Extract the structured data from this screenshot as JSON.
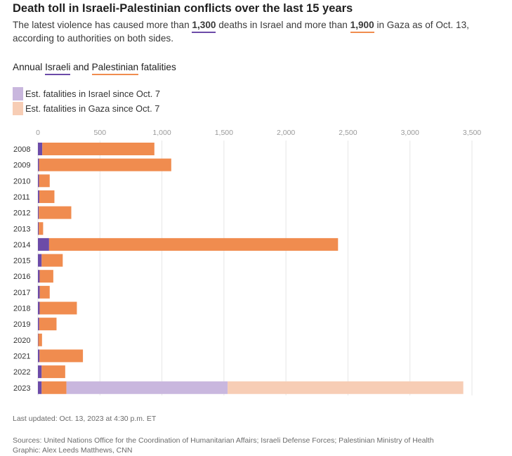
{
  "header": {
    "title": "Death toll in Israeli-Palestinian conflicts over the last 15 years",
    "subtitle_part1": "The latest violence has caused more than ",
    "subtitle_isr_value": "1,300",
    "subtitle_part2": " deaths in Israel and more than ",
    "subtitle_pal_value": "1,900",
    "subtitle_part3": " in Gaza as of Oct. 13, according to authorities on both sides."
  },
  "chart_heading": {
    "prefix": "Annual ",
    "israeli": "Israeli",
    "and": " and ",
    "palestinian": "Palestinian",
    "suffix": " fatalities"
  },
  "legend": [
    {
      "label": "Est. fatalities in Israel since Oct. 7",
      "color": "#c9b7de"
    },
    {
      "label": "Est. fatalities in Gaza since Oct. 7",
      "color": "#f7cdb5"
    }
  ],
  "colors": {
    "israeli": "#6c4ba8",
    "palestinian": "#f08c4f",
    "israeli_est": "#c9b7de",
    "palestinian_est": "#f7cdb5",
    "grid": "#e6e6e6"
  },
  "chart_data": {
    "type": "bar",
    "orientation": "horizontal",
    "stacked": true,
    "title": "Annual Israeli and Palestinian fatalities",
    "xlim": [
      0,
      3500
    ],
    "ticks": [
      0,
      500,
      1000,
      1500,
      2000,
      2500,
      3000,
      3500
    ],
    "tick_labels": [
      "0",
      "500",
      "1,000",
      "1,500",
      "2,000",
      "2,500",
      "3,000",
      "3,500"
    ],
    "categories": [
      "2008",
      "2009",
      "2010",
      "2011",
      "2012",
      "2013",
      "2014",
      "2015",
      "2016",
      "2017",
      "2018",
      "2019",
      "2020",
      "2021",
      "2022",
      "2023"
    ],
    "series": [
      {
        "name": "Israeli fatalities",
        "values": [
          35,
          9,
          9,
          11,
          7,
          6,
          90,
          30,
          14,
          15,
          14,
          10,
          3,
          13,
          30,
          30
        ]
      },
      {
        "name": "Palestinian fatalities",
        "values": [
          904,
          1066,
          86,
          122,
          262,
          36,
          2330,
          170,
          110,
          80,
          300,
          140,
          30,
          350,
          190,
          200
        ]
      },
      {
        "name": "Est. fatalities in Israel since Oct. 7",
        "values": [
          0,
          0,
          0,
          0,
          0,
          0,
          0,
          0,
          0,
          0,
          0,
          0,
          0,
          0,
          0,
          1300
        ]
      },
      {
        "name": "Est. fatalities in Gaza since Oct. 7",
        "values": [
          0,
          0,
          0,
          0,
          0,
          0,
          0,
          0,
          0,
          0,
          0,
          0,
          0,
          0,
          0,
          1900
        ]
      }
    ]
  },
  "footer": {
    "last_updated": "Last updated: Oct. 13, 2023 at 4:30 p.m. ET",
    "sources": "Sources: United Nations Office for the Coordination of Humanitarian Affairs; Israeli Defense Forces; Palestinian Ministry of Health",
    "graphic": "Graphic: Alex Leeds Matthews, CNN"
  }
}
